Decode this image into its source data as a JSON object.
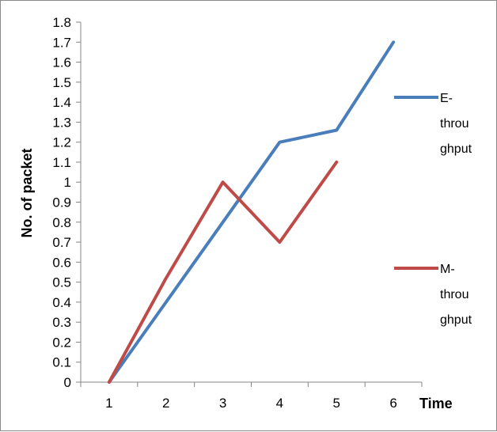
{
  "chart_data": {
    "type": "line",
    "categories": [
      "1",
      "2",
      "3",
      "4",
      "5",
      "6"
    ],
    "xlabel": "Time",
    "ylabel": "No. of packet",
    "ylim": [
      0,
      1.8
    ],
    "y_ticks": [
      "0",
      "0.1",
      "0.2",
      "0.3",
      "0.4",
      "0.5",
      "0.6",
      "0.7",
      "0.8",
      "0.9",
      "1",
      "1.1",
      "1.2",
      "1.3",
      "1.4",
      "1.5",
      "1.6",
      "1.7",
      "1.8"
    ],
    "grid": false,
    "legend_position": "right",
    "series": [
      {
        "name": "E-throughput",
        "legend_lines": [
          "E-",
          "throu",
          "ghput"
        ],
        "color": "#4a7ebb",
        "values": [
          0,
          0.4,
          0.8,
          1.2,
          1.26,
          1.7
        ]
      },
      {
        "name": "M-throughput",
        "legend_lines": [
          "M-",
          "throu",
          "ghput"
        ],
        "color": "#be4b48",
        "values": [
          0,
          0.52,
          1.0,
          0.7,
          1.1,
          null
        ]
      }
    ]
  }
}
